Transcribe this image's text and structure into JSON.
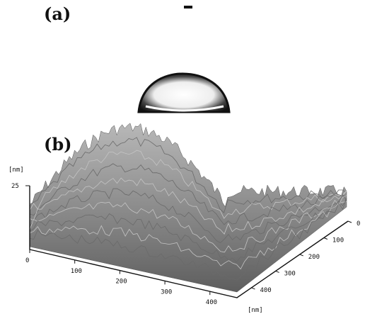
{
  "panel_a": {
    "label": "(a)"
  },
  "panel_b": {
    "label": "(b)",
    "z_unit": "[nm]",
    "z_ticks": [
      25
    ],
    "x_ticks": [
      0,
      100,
      200,
      300,
      400
    ],
    "y_ticks": [
      0,
      100,
      200,
      300,
      400
    ],
    "xy_unit": "[nm]"
  }
}
